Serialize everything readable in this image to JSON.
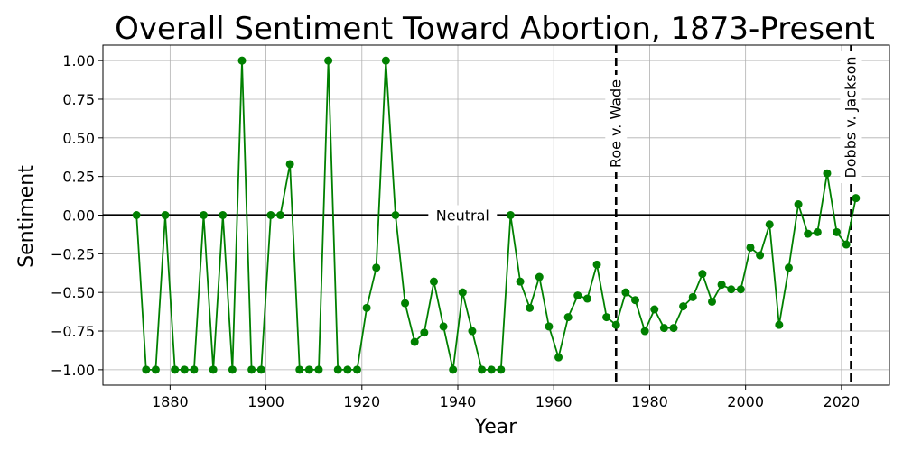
{
  "chart_data": {
    "type": "line",
    "title": "Overall Sentiment Toward Abortion, 1873-Present",
    "xlabel": "Year",
    "ylabel": "Sentiment",
    "xlim": [
      1866,
      2030
    ],
    "ylim": [
      -1.1,
      1.1
    ],
    "xticks": [
      1880,
      1900,
      1920,
      1940,
      1960,
      1980,
      2000,
      2020
    ],
    "yticks": [
      1.0,
      0.75,
      0.5,
      0.25,
      0.0,
      -0.25,
      -0.5,
      -0.75,
      -1.0
    ],
    "ytick_labels": [
      "1.00",
      "0.75",
      "0.50",
      "0.25",
      "0.00",
      "−0.25",
      "−0.50",
      "−0.75",
      "−1.00"
    ],
    "grid": true,
    "series_color": "#008000",
    "series": [
      {
        "x": [
          1873,
          1875,
          1877,
          1879,
          1881,
          1883,
          1885,
          1887,
          1889,
          1891,
          1893,
          1895,
          1897,
          1899,
          1901,
          1903,
          1905,
          1907,
          1909,
          1911,
          1913,
          1915,
          1917,
          1919,
          1921,
          1923,
          1925,
          1927,
          1929,
          1931,
          1933,
          1935,
          1937,
          1939,
          1941,
          1943,
          1945,
          1947,
          1949,
          1951,
          1953,
          1955,
          1957,
          1959,
          1961,
          1963,
          1965,
          1967,
          1969,
          1971,
          1973,
          1975,
          1977,
          1979,
          1981,
          1983,
          1985,
          1987,
          1989,
          1991,
          1993,
          1995,
          1997,
          1999,
          2001,
          2003,
          2005,
          2007,
          2009,
          2011,
          2013,
          2015,
          2017,
          2019,
          2021,
          2023
        ],
        "y": [
          0.0,
          -1.0,
          -1.0,
          0.0,
          -1.0,
          -1.0,
          -1.0,
          0.0,
          -1.0,
          0.0,
          -1.0,
          1.0,
          -1.0,
          -1.0,
          0.0,
          0.0,
          0.33,
          -1.0,
          -1.0,
          -1.0,
          1.0,
          -1.0,
          -1.0,
          -1.0,
          -0.6,
          -0.34,
          1.0,
          0.0,
          -0.57,
          -0.82,
          -0.76,
          -0.43,
          -0.72,
          -1.0,
          -0.5,
          -0.75,
          -1.0,
          -1.0,
          -1.0,
          0.0,
          -0.43,
          -0.6,
          -0.4,
          -0.72,
          -0.92,
          -0.66,
          -0.52,
          -0.54,
          -0.32,
          -0.66,
          -0.71,
          -0.5,
          -0.55,
          -0.75,
          -0.61,
          -0.73,
          -0.73,
          -0.59,
          -0.53,
          -0.38,
          -0.56,
          -0.45,
          -0.48,
          -0.48,
          -0.21,
          -0.26,
          -0.06,
          -0.71,
          -0.34,
          0.07,
          -0.12,
          -0.11,
          0.27,
          -0.11,
          -0.19,
          0.11
        ]
      }
    ],
    "hline": {
      "y": 0.0,
      "label": "Neutral",
      "label_x": 1941
    },
    "vlines": [
      {
        "x": 1973,
        "label": "Roe v. Wade"
      },
      {
        "x": 2022,
        "label": "Dobbs v. Jackson"
      }
    ]
  }
}
